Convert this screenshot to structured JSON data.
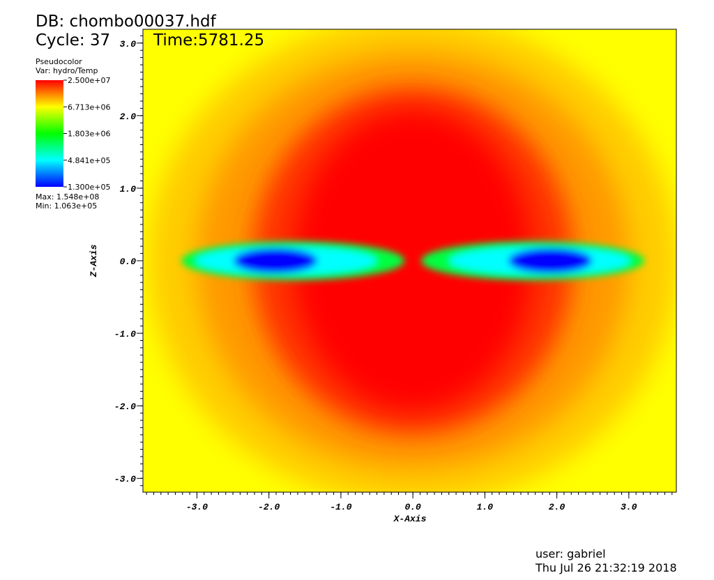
{
  "chart_data": {
    "type": "pseudocolor",
    "db": "DB: chombo00037.hdf",
    "cycle": "Cycle: 37",
    "time": "Time:5781.25",
    "legend": {
      "plot": "Pseudocolor",
      "var": "Var: hydro/Temp",
      "clim": [
        130000,
        25000000
      ],
      "log": true,
      "colors": [
        "#0000ff",
        "#00ffff",
        "#00ff00",
        "#ffff00",
        "#ff0000"
      ],
      "ticks": [
        {
          "value": 25000000,
          "label": "2.500e+07"
        },
        {
          "value": 6713000,
          "label": "6.713e+06"
        },
        {
          "value": 1803000,
          "label": "1.803e+06"
        },
        {
          "value": 484100,
          "label": "4.841e+05"
        },
        {
          "value": 130000,
          "label": "1.300e+05"
        }
      ],
      "max": "Max: 1.548e+08",
      "min": "Min: 1.063e+05"
    },
    "xlabel": "X-Axis",
    "ylabel": "Z-Axis",
    "xlim": [
      -3.75,
      3.66
    ],
    "ylim": [
      -3.19,
      3.19
    ],
    "xticks": [
      {
        "value": -3,
        "label": "-3.0"
      },
      {
        "value": -2,
        "label": "-2.0"
      },
      {
        "value": -1,
        "label": "-1.0"
      },
      {
        "value": 0,
        "label": "0.0"
      },
      {
        "value": 1,
        "label": "1.0"
      },
      {
        "value": 2,
        "label": "2.0"
      },
      {
        "value": 3,
        "label": "3.0"
      }
    ],
    "yticks": [
      {
        "value": -3,
        "label": "-3.0"
      },
      {
        "value": -2,
        "label": "-2.0"
      },
      {
        "value": -1,
        "label": "-1.0"
      },
      {
        "value": 0,
        "label": "0.0"
      },
      {
        "value": 1,
        "label": "1.0"
      },
      {
        "value": 2,
        "label": "2.0"
      },
      {
        "value": 3,
        "label": "3.0"
      }
    ],
    "user": "user: gabriel",
    "date": "Thu Jul 26 21:32:19 2018"
  }
}
